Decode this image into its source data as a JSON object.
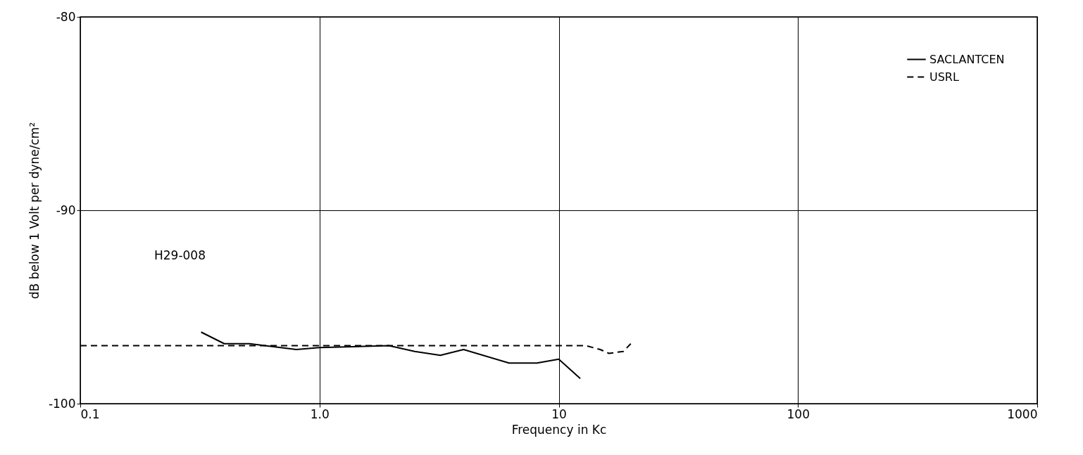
{
  "chart_data": {
    "type": "line",
    "xlabel": "Frequency in Kc",
    "ylabel": "dB below 1 Volt per dyne/cm²",
    "log": "x",
    "xlim": [
      0.1,
      1000
    ],
    "xticks": [
      0.1,
      {
        "value": 1,
        "label": "1.0"
      },
      10,
      100,
      1000
    ],
    "ylim": [
      -100,
      -80
    ],
    "yticks": [
      -100,
      -90,
      -80
    ],
    "grid": true,
    "legend": "top right",
    "annotations": [
      "H29-008"
    ],
    "series": [
      {
        "name": "SACLANTCEN",
        "color": "#000000",
        "line_style": "solid",
        "x": [
          0.32,
          0.4,
          0.51,
          0.8,
          1.0,
          1.95,
          2.5,
          3.2,
          4.0,
          6.2,
          8.1,
          10,
          12.3
        ],
        "values": [
          -96.3,
          -96.9,
          -96.9,
          -97.2,
          -97.1,
          -97.0,
          -97.3,
          -97.5,
          -97.2,
          -97.9,
          -97.9,
          -97.7,
          -98.7
        ]
      },
      {
        "name": "USRL",
        "color": "#000000",
        "line_style": "dashed",
        "x": [
          0.1,
          1,
          10,
          13,
          14.9,
          16.2,
          18.6,
          20
        ],
        "values": [
          -97.0,
          -97.0,
          -97.0,
          -97.0,
          -97.2,
          -97.4,
          -97.3,
          -96.9
        ]
      }
    ]
  }
}
